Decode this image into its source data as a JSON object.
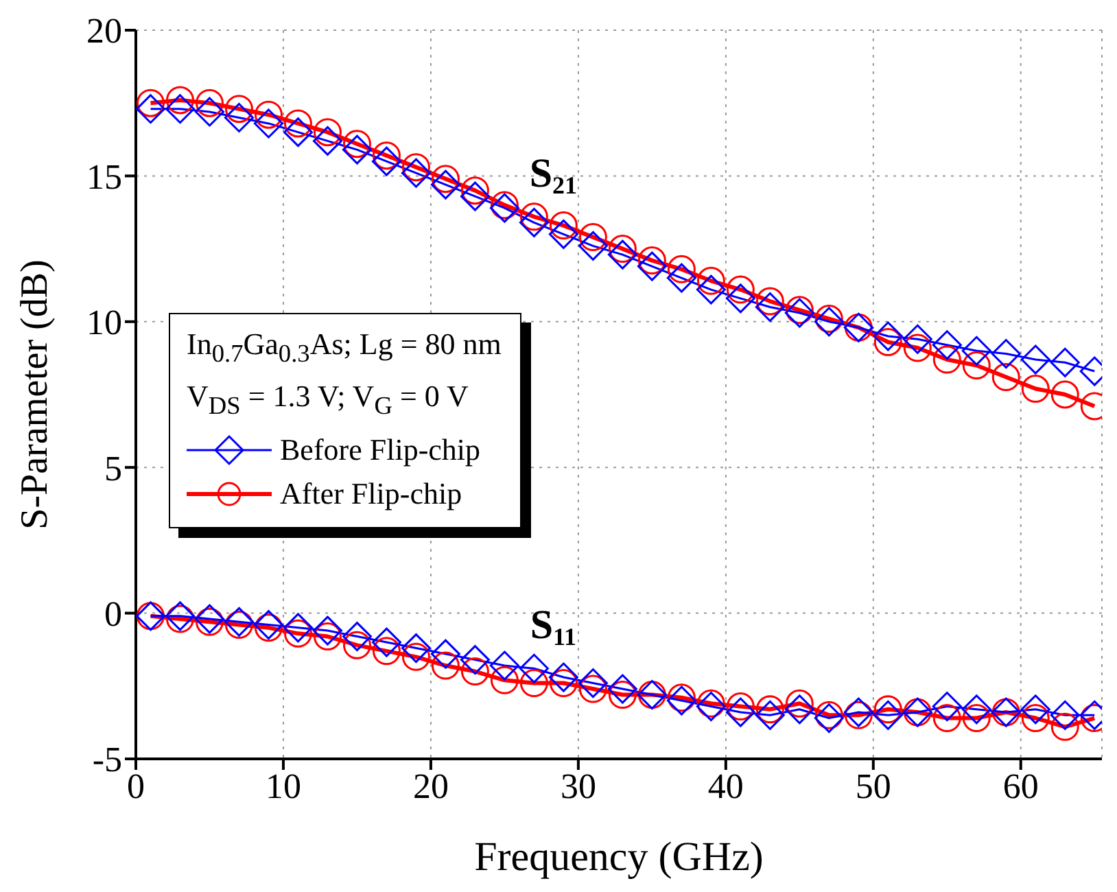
{
  "chart_data": {
    "type": "line",
    "xlabel": "Frequency (GHz)",
    "ylabel": "S-Parameter (dB)",
    "x": [
      1,
      3,
      5,
      7,
      9,
      11,
      13,
      15,
      17,
      19,
      21,
      23,
      25,
      27,
      29,
      31,
      33,
      35,
      37,
      39,
      41,
      43,
      45,
      47,
      49,
      51,
      53,
      55,
      57,
      59,
      61,
      63,
      65
    ],
    "series": [
      {
        "name": "Before Flip-chip",
        "color": "#0000ff",
        "marker": "diamond",
        "values": [
          17.3,
          17.3,
          17.2,
          17.0,
          16.8,
          16.5,
          16.2,
          15.9,
          15.5,
          15.1,
          14.7,
          14.3,
          13.9,
          13.4,
          13.0,
          12.6,
          12.3,
          11.9,
          11.5,
          11.1,
          10.8,
          10.5,
          10.3,
          10.0,
          9.8,
          9.5,
          9.4,
          9.2,
          9.0,
          8.9,
          8.7,
          8.6,
          8.3
        ]
      },
      {
        "name": "After Flip-chip",
        "color": "#ff0000",
        "marker": "circle",
        "values": [
          17.5,
          17.6,
          17.5,
          17.3,
          17.1,
          16.8,
          16.5,
          16.1,
          15.7,
          15.3,
          14.9,
          14.5,
          14.0,
          13.6,
          13.3,
          12.9,
          12.5,
          12.1,
          11.8,
          11.4,
          11.1,
          10.7,
          10.4,
          10.1,
          9.8,
          9.3,
          9.1,
          8.7,
          8.5,
          8.1,
          7.7,
          7.5,
          7.1
        ]
      },
      {
        "color": "#0000ff",
        "marker": "diamond",
        "values": [
          -0.1,
          -0.1,
          -0.2,
          -0.3,
          -0.4,
          -0.5,
          -0.6,
          -0.8,
          -1.0,
          -1.2,
          -1.4,
          -1.6,
          -1.8,
          -1.9,
          -2.2,
          -2.4,
          -2.6,
          -2.8,
          -3.0,
          -3.2,
          -3.4,
          -3.5,
          -3.3,
          -3.6,
          -3.4,
          -3.5,
          -3.4,
          -3.2,
          -3.3,
          -3.4,
          -3.3,
          -3.5,
          -3.5
        ]
      },
      {
        "color": "#ff0000",
        "marker": "circle",
        "values": [
          -0.1,
          -0.2,
          -0.3,
          -0.4,
          -0.5,
          -0.7,
          -0.8,
          -1.1,
          -1.3,
          -1.5,
          -1.8,
          -2.0,
          -2.3,
          -2.4,
          -2.4,
          -2.6,
          -2.8,
          -2.8,
          -2.9,
          -3.1,
          -3.2,
          -3.3,
          -3.1,
          -3.5,
          -3.5,
          -3.3,
          -3.4,
          -3.6,
          -3.6,
          -3.4,
          -3.6,
          -3.9,
          -3.6
        ]
      }
    ],
    "xlim": [
      0,
      65.5
    ],
    "xticks": [
      0,
      10,
      20,
      30,
      40,
      50,
      60
    ],
    "ylim": [
      -5,
      20
    ],
    "yticks": [
      -5,
      0,
      5,
      10,
      15,
      20
    ],
    "grid": true,
    "legend": "left",
    "line_style": "solid",
    "legend_title": "In$_{0.7}$Ga$_{0.3}$As; Lg = 80 nm\nV$_{DS}$ = 1.3 V; V$_{G}$ = 0 V",
    "annotations": [
      "S$_{21}$",
      "S$_{11}$"
    ]
  }
}
